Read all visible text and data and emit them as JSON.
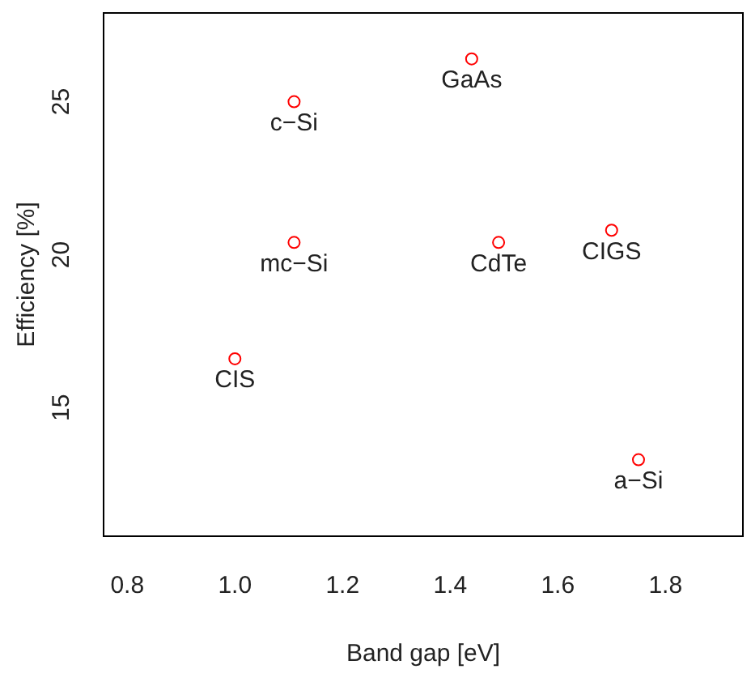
{
  "chart_data": {
    "type": "scatter",
    "xlabel": "Band gap [eV]",
    "ylabel": "Efficiency [%]",
    "x": [
      1.44,
      1.11,
      1.11,
      1.49,
      1.7,
      1.0,
      1.75
    ],
    "values": [
      26.4,
      25.0,
      20.4,
      20.4,
      20.8,
      16.6,
      13.3
    ],
    "color": "#ff0000",
    "marker": "circle",
    "grid": false,
    "legend": false,
    "xlim": [
      0.756,
      1.944
    ],
    "xticks": [
      {
        "value": 0.8,
        "label": "0.8"
      },
      {
        "value": 1.0,
        "label": "1.0"
      },
      {
        "value": 1.2,
        "label": "1.2"
      },
      {
        "value": 1.4,
        "label": "1.4"
      },
      {
        "value": 1.6,
        "label": "1.6"
      },
      {
        "value": 1.8,
        "label": "1.8"
      }
    ],
    "ylim": [
      10.8,
      27.9
    ],
    "yticks": [
      15,
      20,
      25
    ],
    "annotations": [
      {
        "text": "GaAs",
        "x": 1.44,
        "y": 26.4
      },
      {
        "text": "c−Si",
        "x": 1.11,
        "y": 25.0
      },
      {
        "text": "mc−Si",
        "x": 1.11,
        "y": 20.4
      },
      {
        "text": "CdTe",
        "x": 1.49,
        "y": 20.4
      },
      {
        "text": "CIGS",
        "x": 1.7,
        "y": 20.8
      },
      {
        "text": "CIS",
        "x": 1.0,
        "y": 16.6
      },
      {
        "text": "a−Si",
        "x": 1.75,
        "y": 13.3
      }
    ]
  }
}
